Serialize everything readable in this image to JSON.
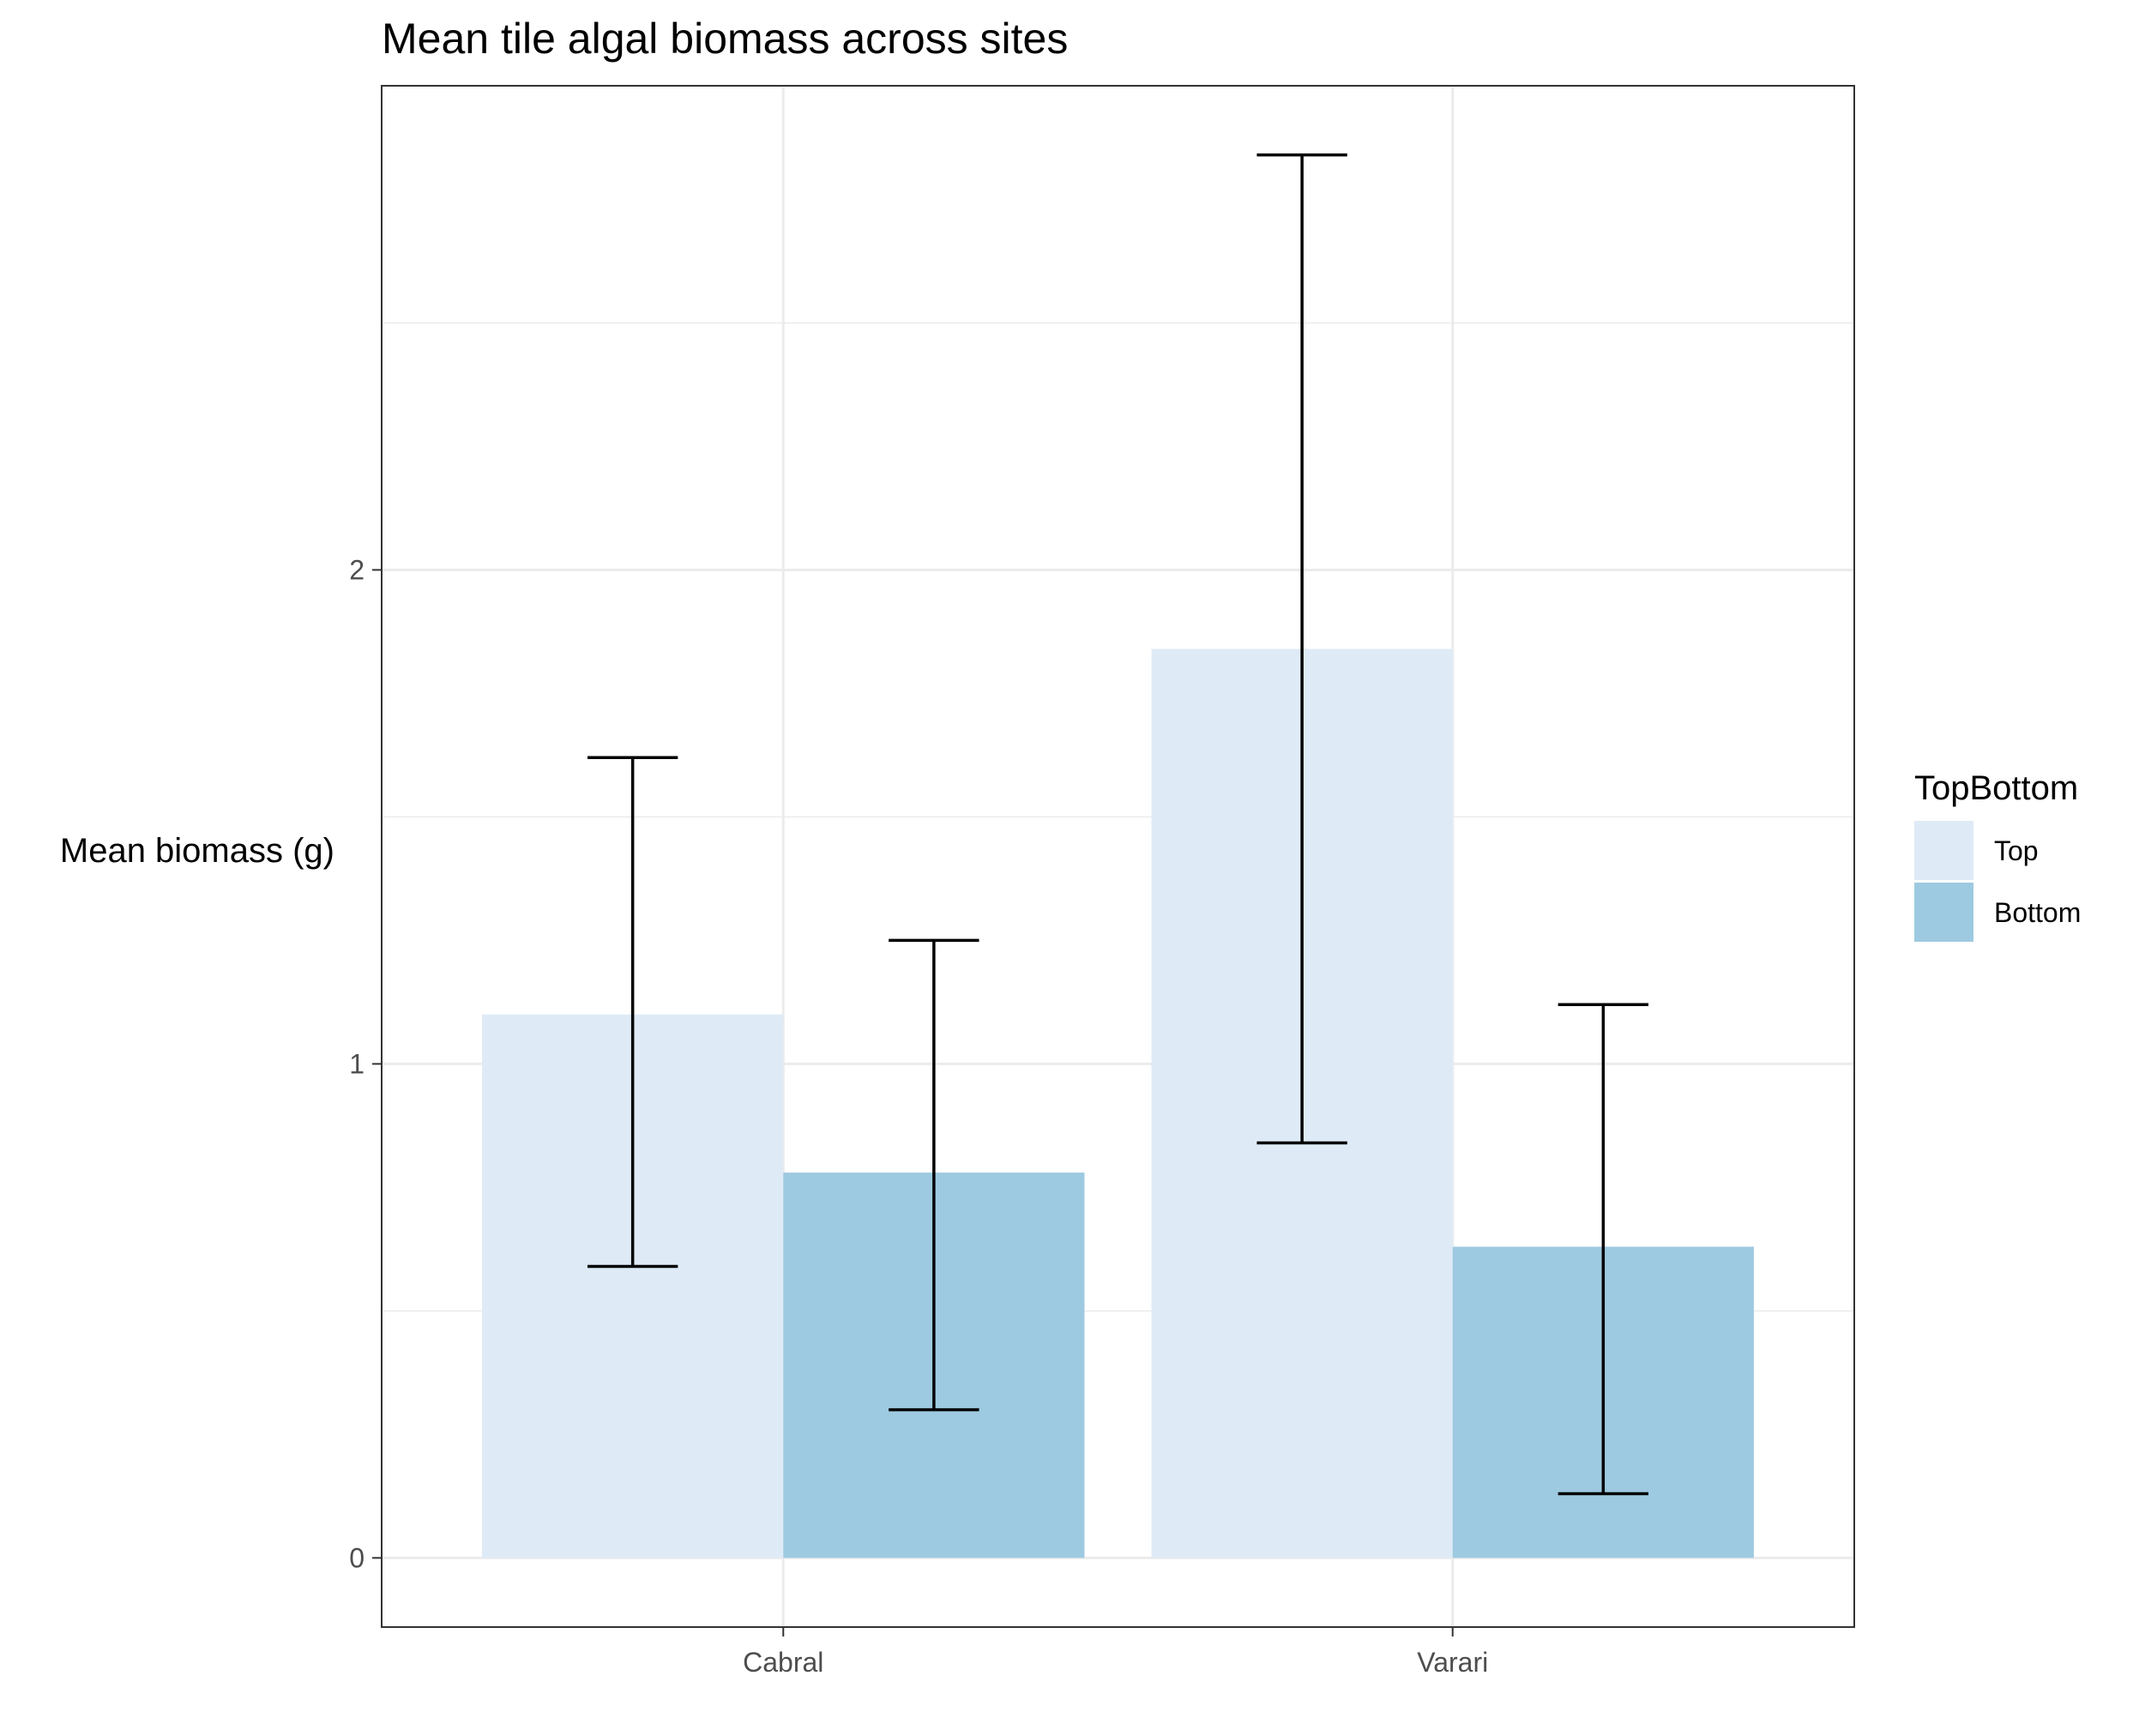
{
  "chart_data": {
    "type": "bar",
    "title": "Mean tile algal biomass across sites",
    "xlabel": "",
    "ylabel": "Mean biomass (g)",
    "categories": [
      "Cabral",
      "Varari"
    ],
    "series": [
      {
        "name": "Top",
        "color": "#deebf7",
        "values": [
          1.1,
          1.84
        ],
        "error_low": [
          0.59,
          0.84
        ],
        "error_high": [
          1.62,
          2.84
        ]
      },
      {
        "name": "Bottom",
        "color": "#9ecae1",
        "values": [
          0.78,
          0.63
        ],
        "error_low": [
          0.3,
          0.13
        ],
        "error_high": [
          1.25,
          1.12
        ]
      }
    ],
    "ylim": [
      -0.14,
      2.98
    ],
    "yticks": [
      0,
      1,
      2
    ],
    "ytick_labels": [
      "0",
      "1",
      "2"
    ],
    "grid": true,
    "legend": {
      "title": "TopBottom",
      "position": "right",
      "entries": [
        "Top",
        "Bottom"
      ]
    }
  }
}
